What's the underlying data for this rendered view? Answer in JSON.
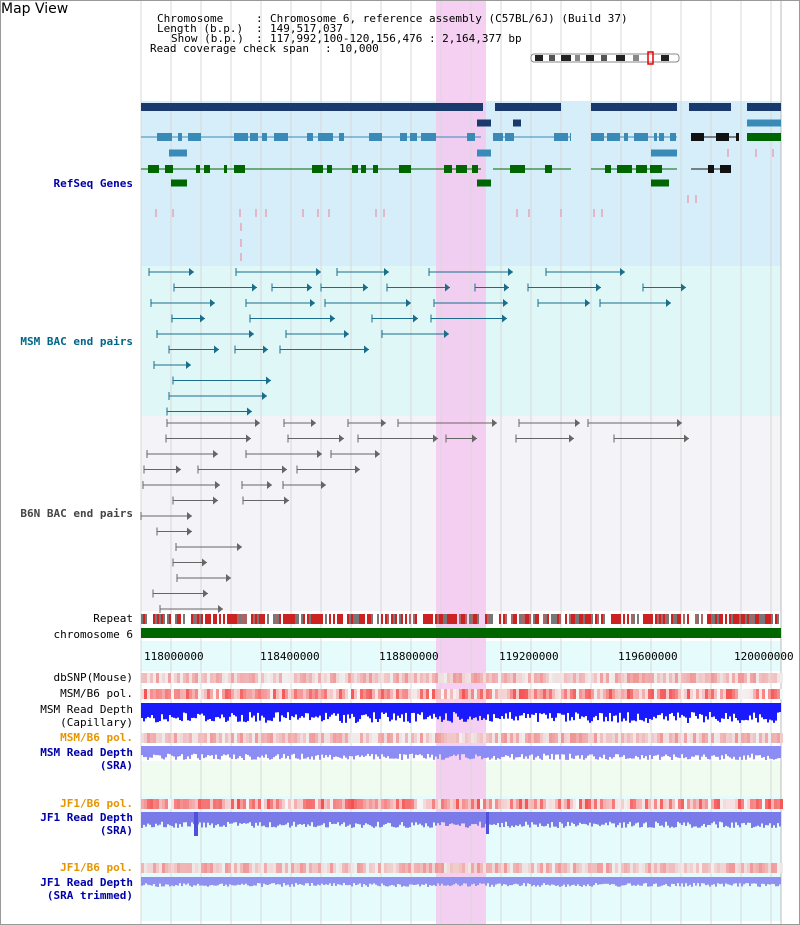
{
  "view_title": "Map View",
  "info": {
    "chromosome_label": "Chromosome",
    "chromosome_value": "Chromosome 6, reference assembly (C57BL/6J) (Build 37)",
    "length_label": "Length (b.p.)",
    "length_value": "149,517,037",
    "show_label": "Show (b.p.)",
    "show_value": "117,992,100-120,156,476 : 2,164,377 bp",
    "span_label": "Read coverage check span",
    "span_value": "10,000"
  },
  "tracks": {
    "refseq": "RefSeq Genes",
    "msm_bac": "MSM BAC end pairs",
    "b6n_bac": "B6N BAC end pairs",
    "repeat": "Repeat",
    "chromosome": "chromosome 6",
    "dbsnp": "dbSNP(Mouse)",
    "msm_b6_pol_1": "MSM/B6 pol.",
    "msm_depth_cap": "MSM Read Depth\n(Capillary)",
    "msm_b6_pol_2": "MSM/B6 pol.",
    "msm_depth_sra": "MSM Read Depth\n(SRA)",
    "jf1_b6_pol_1": "JF1/B6 pol.",
    "jf1_depth_sra": "JF1 Read Depth\n(SRA)",
    "jf1_b6_pol_2": "JF1/B6 pol.",
    "jf1_depth_trim": "JF1 Read Depth\n(SRA trimmed)"
  },
  "axis_ticks": [
    "118000000",
    "118400000",
    "118800000",
    "119200000",
    "119600000",
    "120000000"
  ],
  "colors": {
    "gene_dark": "#1a3a6e",
    "gene_mid": "#3a8ab8",
    "gene_green": "#006600",
    "msm_bac": "#1a6e8c",
    "b6n_bac": "#666666",
    "highlight": "#f5c8f0",
    "refseq_label": "#0000aa",
    "msm_label": "#006688",
    "b6n_label": "#444444",
    "orange_label": "#e69500",
    "blue_label": "#0000aa"
  },
  "icons": [
    "chromosome-ideogram-icon"
  ]
}
